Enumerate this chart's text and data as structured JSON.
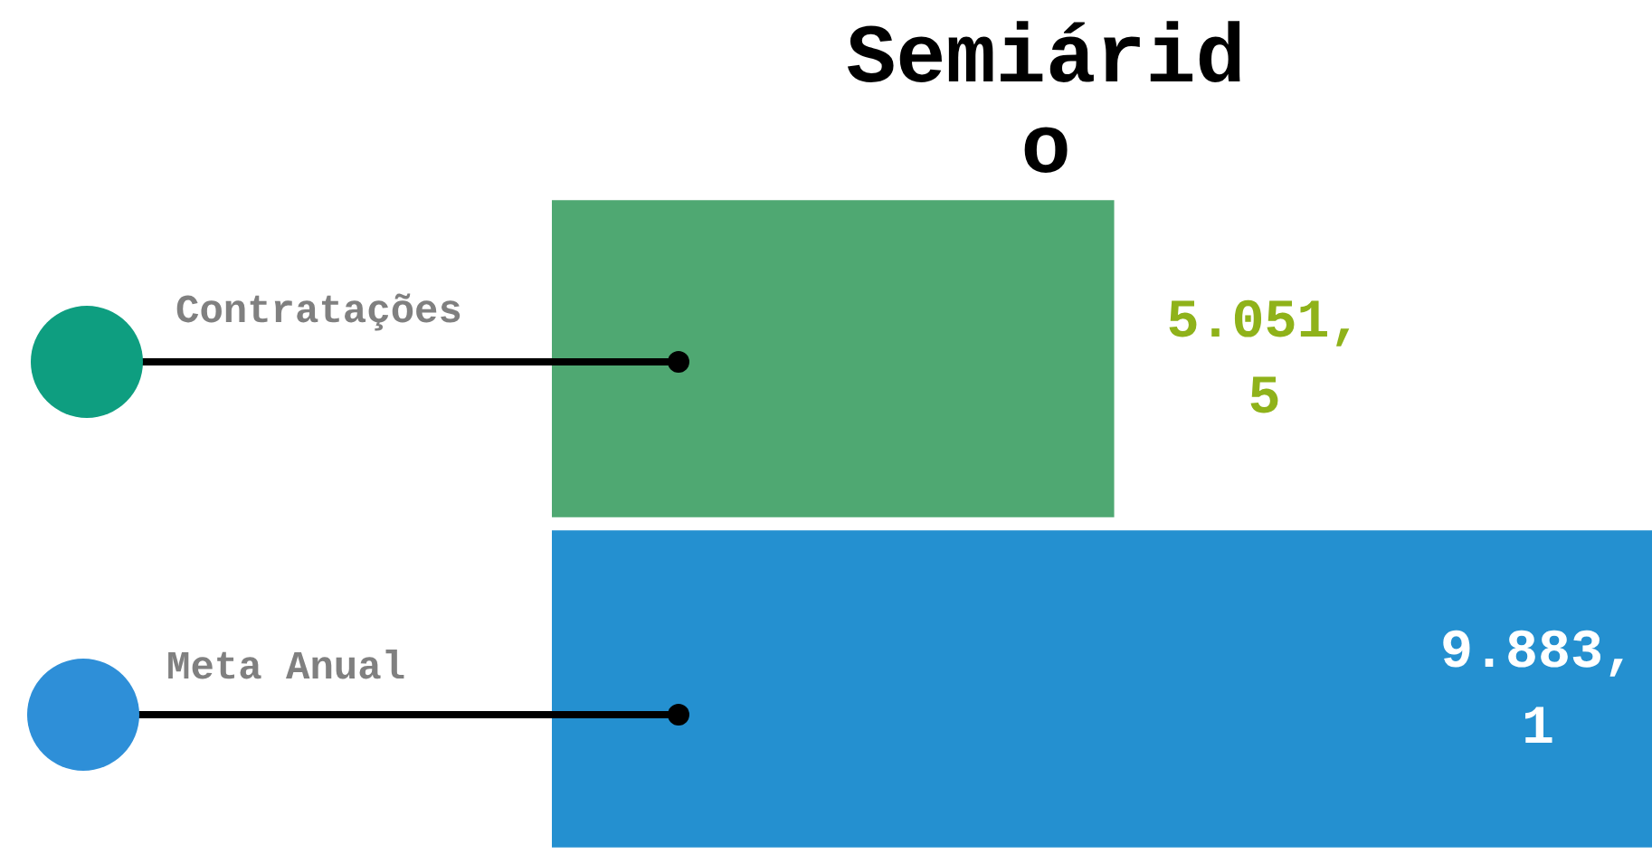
{
  "chart_data": {
    "type": "bar",
    "orientation": "horizontal",
    "title": "Semiárido",
    "categories": [
      "Contratações",
      "Meta Anual"
    ],
    "values": [
      5051.5,
      9883.1
    ],
    "colors": [
      "#4fa872",
      "#2490d0"
    ],
    "value_labels": [
      "5.051,5",
      "9.883,1"
    ],
    "legend": false
  }
}
